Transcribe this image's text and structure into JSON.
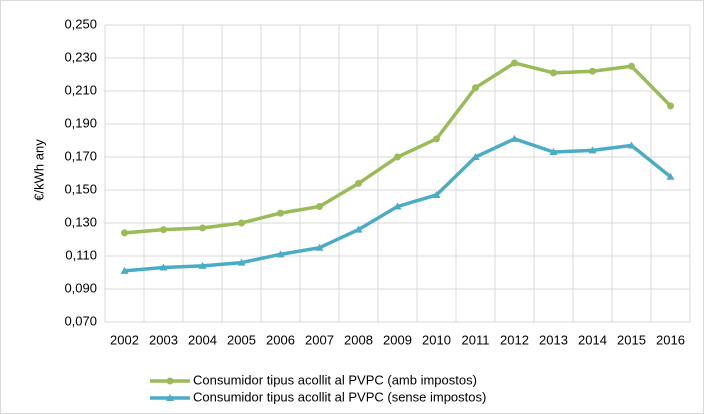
{
  "chart_data": {
    "type": "line",
    "y_label": "€/kWh any",
    "categories": [
      "2002",
      "2003",
      "2004",
      "2005",
      "2006",
      "2007",
      "2008",
      "2009",
      "2010",
      "2011",
      "2012",
      "2013",
      "2014",
      "2015",
      "2016"
    ],
    "series": [
      {
        "name": "Consumidor tipus acollit al PVPC (amb impostos)",
        "color": "#9bbb59",
        "marker": "circle",
        "values": [
          0.124,
          0.126,
          0.127,
          0.13,
          0.136,
          0.14,
          0.154,
          0.17,
          0.181,
          0.212,
          0.227,
          0.221,
          0.222,
          0.225,
          0.201
        ]
      },
      {
        "name": "Consumidor tipus acollit al PVPC (sense impostos)",
        "color": "#4bacc6",
        "marker": "triangle",
        "values": [
          0.101,
          0.103,
          0.104,
          0.106,
          0.111,
          0.115,
          0.126,
          0.14,
          0.147,
          0.17,
          0.181,
          0.173,
          0.174,
          0.177,
          0.158
        ]
      }
    ],
    "ylim": [
      0.07,
      0.25
    ],
    "yticks": [
      {
        "value": 0.07,
        "label": "0,070"
      },
      {
        "value": 0.09,
        "label": "0,090"
      },
      {
        "value": 0.11,
        "label": "0,110"
      },
      {
        "value": 0.13,
        "label": "0,130"
      },
      {
        "value": 0.15,
        "label": "0,150"
      },
      {
        "value": 0.17,
        "label": "0,170"
      },
      {
        "value": 0.19,
        "label": "0,190"
      },
      {
        "value": 0.21,
        "label": "0,210"
      },
      {
        "value": 0.23,
        "label": "0,230"
      },
      {
        "value": 0.25,
        "label": "0,250"
      }
    ],
    "grid": true,
    "legend": "bottom"
  }
}
